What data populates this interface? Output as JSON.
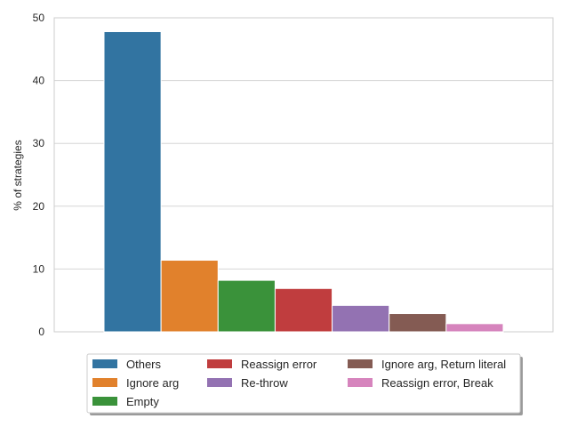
{
  "chart_data": {
    "type": "bar",
    "ylabel": "% of strategies",
    "xlabel": "",
    "ylim": [
      0,
      50
    ],
    "yticks": [
      0,
      10,
      20,
      30,
      40,
      50
    ],
    "grid": "horizontal",
    "legend_placement": "bottom-center",
    "legend_columns": 3,
    "series": [
      {
        "name": "Others",
        "value": 47.8,
        "color": "#3274a1"
      },
      {
        "name": "Ignore arg",
        "value": 11.4,
        "color": "#e1812c"
      },
      {
        "name": "Empty",
        "value": 8.2,
        "color": "#3a923a"
      },
      {
        "name": "Reassign error",
        "value": 6.9,
        "color": "#c03d3e"
      },
      {
        "name": "Re-throw",
        "value": 4.2,
        "color": "#9372b2"
      },
      {
        "name": "Ignore arg, Return literal",
        "value": 2.9,
        "color": "#845b53"
      },
      {
        "name": "Reassign error, Break",
        "value": 1.3,
        "color": "#d684bd"
      }
    ]
  }
}
